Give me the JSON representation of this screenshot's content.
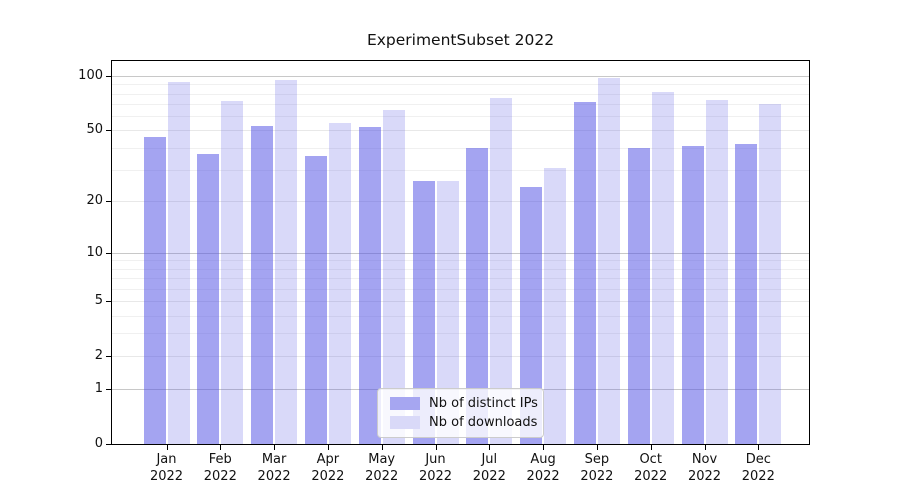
{
  "title": "ExperimentSubset 2022",
  "chart_data": {
    "type": "bar",
    "title": "ExperimentSubset 2022",
    "categories": [
      "Jan 2022",
      "Feb 2022",
      "Mar 2022",
      "Apr 2022",
      "May 2022",
      "Jun 2022",
      "Jul 2022",
      "Aug 2022",
      "Sep 2022",
      "Oct 2022",
      "Nov 2022",
      "Dec 2022"
    ],
    "series": [
      {
        "name": "Nb of distinct IPs",
        "values": [
          46,
          37,
          53,
          36,
          52,
          26,
          40,
          24,
          72,
          40,
          41,
          42
        ],
        "color_hex": "#a6a6f1",
        "rgba": "rgba(81,81,229,0.52)"
      },
      {
        "name": "Nb of downloads",
        "values": [
          93,
          73,
          95,
          55,
          65,
          26,
          76,
          31,
          97,
          82,
          74,
          70
        ],
        "color_hex": "#d9d9f8",
        "rgba": "rgba(81,81,229,0.22)"
      }
    ],
    "xlabel": "",
    "ylabel": "",
    "yscale": "symlog (log10 of 1+y)",
    "ylim": [
      0,
      121
    ],
    "y_ticks": [
      100,
      50,
      20,
      10,
      5,
      2,
      1,
      0
    ],
    "grid": "on",
    "legend_position": "lower center inside plot"
  },
  "colors": {
    "grid_decade": "#c8c8c8",
    "grid_labeled_minor": "#e8e8e8",
    "grid_minor": "#f0f0f0",
    "spine": "#000000",
    "text": "#111111"
  }
}
